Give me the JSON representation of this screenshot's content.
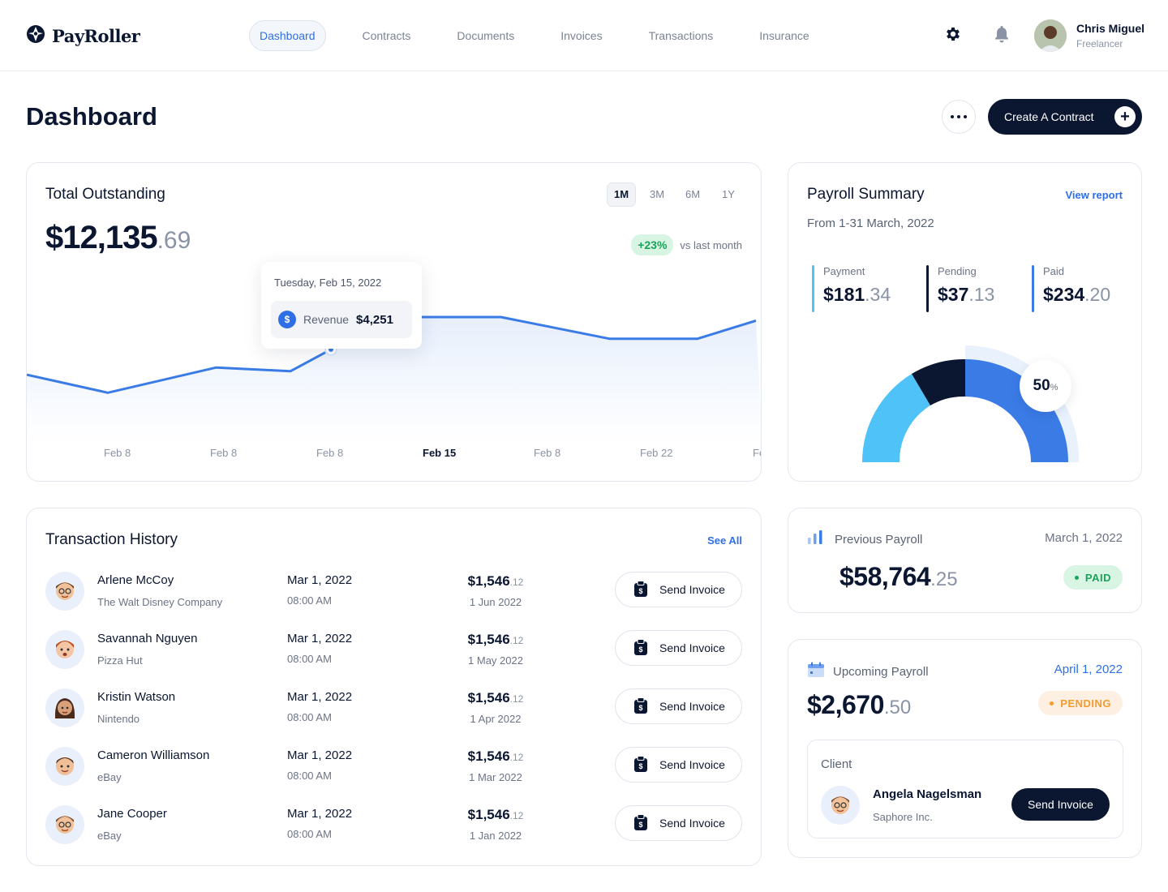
{
  "brand": {
    "name": "PayRoller"
  },
  "nav": {
    "items": [
      {
        "label": "Dashboard",
        "active": true
      },
      {
        "label": "Contracts",
        "active": false
      },
      {
        "label": "Documents",
        "active": false
      },
      {
        "label": "Invoices",
        "active": false
      },
      {
        "label": "Transactions",
        "active": false
      },
      {
        "label": "Insurance",
        "active": false
      }
    ]
  },
  "top_icons": [
    "gear-icon",
    "bell-icon"
  ],
  "user": {
    "name": "Chris Miguel",
    "role": "Freelancer"
  },
  "page": {
    "title": "Dashboard",
    "create_label": "Create A Contract"
  },
  "total_outstanding": {
    "title": "Total Outstanding",
    "amount_main": "$12,135",
    "amount_cents": ".69",
    "periods": [
      "1M",
      "3M",
      "6M",
      "1Y"
    ],
    "active_period": "1M",
    "growth": "+23%",
    "growth_note": "vs last month",
    "tooltip": {
      "date": "Tuesday, Feb 15, 2022",
      "label": "Revenue",
      "value": "$4,251"
    },
    "x_labels": [
      "Feb 8",
      "Feb 8",
      "Feb 8",
      "Feb 15",
      "Feb 8",
      "Feb 22",
      "Fe"
    ]
  },
  "chart_data": {
    "type": "area",
    "title": "Total Outstanding",
    "x": [
      "Feb 8",
      "Feb 8",
      "Feb 8",
      "Feb 15",
      "Feb 8",
      "Feb 22",
      "Fe"
    ],
    "highlight_index": 3,
    "series": [
      {
        "points": [
          {
            "x": 0.0,
            "y": 3900
          },
          {
            "x": 0.9,
            "y": 3650
          },
          {
            "x": 1.92,
            "y": 4000
          },
          {
            "x": 2.62,
            "y": 3950
          },
          {
            "x": 3.0,
            "y": 4251
          },
          {
            "x": 3.53,
            "y": 4700
          },
          {
            "x": 4.6,
            "y": 4700
          },
          {
            "x": 5.62,
            "y": 4400
          },
          {
            "x": 6.45,
            "y": 4400
          },
          {
            "x": 7.0,
            "y": 4650
          }
        ]
      }
    ],
    "ylim": [
      2000,
      6500
    ],
    "grid": false,
    "accent": "#3a7be6"
  },
  "payroll_summary": {
    "title": "Payroll Summary",
    "link": "View report",
    "subtitle": "From 1-31 March, 2022",
    "stats": [
      {
        "label": "Payment",
        "main": "$181",
        "cents": ".34",
        "color": "#4fc3f7"
      },
      {
        "label": "Pending",
        "main": "$37",
        "cents": ".13",
        "color": "#0b1630"
      },
      {
        "label": "Paid",
        "main": "$234",
        "cents": ".20",
        "color": "#3a7be6"
      }
    ],
    "percent": "50",
    "percent_unit": "%"
  },
  "transactions": {
    "title": "Transaction History",
    "link": "See All",
    "button_label": "Send Invoice",
    "rows": [
      {
        "name": "Arlene McCoy",
        "company": "The Walt Disney Company",
        "date": "Mar 1, 2022",
        "time": "08:00 AM",
        "amount_main": "$1,546",
        "amount_cents": ".12",
        "due": "1 Jun 2022"
      },
      {
        "name": "Savannah Nguyen",
        "company": "Pizza Hut",
        "date": "Mar 1, 2022",
        "time": "08:00 AM",
        "amount_main": "$1,546",
        "amount_cents": ".12",
        "due": "1 May 2022"
      },
      {
        "name": "Kristin Watson",
        "company": "Nintendo",
        "date": "Mar 1, 2022",
        "time": "08:00 AM",
        "amount_main": "$1,546",
        "amount_cents": ".12",
        "due": "1 Apr 2022"
      },
      {
        "name": "Cameron Williamson",
        "company": "eBay",
        "date": "Mar 1, 2022",
        "time": "08:00 AM",
        "amount_main": "$1,546",
        "amount_cents": ".12",
        "due": "1 Mar 2022"
      },
      {
        "name": "Jane Cooper",
        "company": "eBay",
        "date": "Mar 1, 2022",
        "time": "08:00 AM",
        "amount_main": "$1,546",
        "amount_cents": ".12",
        "due": "1 Jan 2022"
      }
    ]
  },
  "previous_payroll": {
    "title": "Previous Payroll",
    "date": "March 1, 2022",
    "amount_main": "$58,764",
    "amount_cents": ".25",
    "status": "PAID"
  },
  "upcoming_payroll": {
    "title": "Upcoming Payroll",
    "date": "April 1, 2022",
    "amount_main": "$2,670",
    "amount_cents": ".50",
    "status": "PENDING",
    "client_label": "Client",
    "client_name": "Angela Nagelsman",
    "client_company": "Saphore Inc.",
    "client_button": "Send Invoice"
  }
}
